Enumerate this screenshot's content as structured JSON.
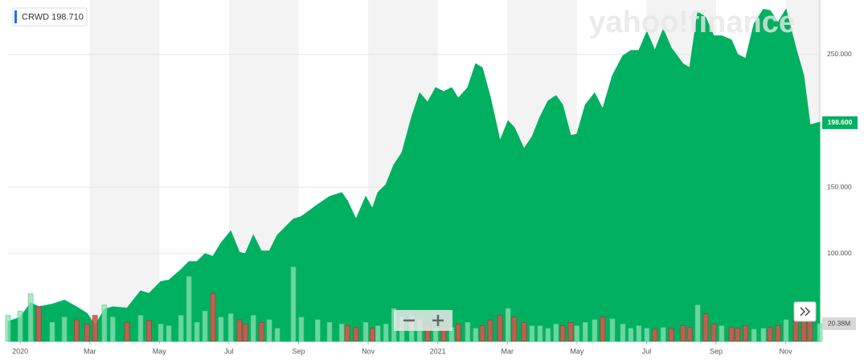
{
  "chart_data": {
    "type": "area",
    "legend_text": "CRWD 198.710",
    "watermark": "yahoo!finance",
    "last_price": {
      "value": 198.6,
      "label": "198.600"
    },
    "volume_label": "20.38M",
    "x": [
      -0.35,
      0,
      0.3,
      0.53,
      0.92,
      1.27,
      1.62,
      1.92,
      2.15,
      2.42,
      2.66,
      3.07,
      3.46,
      3.7,
      4.04,
      4.27,
      4.62,
      4.85,
      5.08,
      5.31,
      5.54,
      5.77,
      6.05,
      6.3,
      6.47,
      6.7,
      6.93,
      7.16,
      7.39,
      7.85,
      8.08,
      8.55,
      8.89,
      9.24,
      9.4,
      9.65,
      9.93,
      10.12,
      10.28,
      10.51,
      10.74,
      10.97,
      11.25,
      11.48,
      11.71,
      11.94,
      12.17,
      12.4,
      12.59,
      12.86,
      13.09,
      13.28,
      13.51,
      13.79,
      14.02,
      14.2,
      14.48,
      14.71,
      14.94,
      15.17,
      15.4,
      15.59,
      15.82,
      16.0,
      16.24,
      16.51,
      16.74,
      17.02,
      17.32,
      17.55,
      17.78,
      18.01,
      18.24,
      18.48,
      18.71,
      19.05,
      19.24,
      19.47,
      19.7,
      19.93,
      20.16,
      20.44,
      20.62,
      20.85,
      21.09,
      21.36,
      21.55,
      21.78,
      22.01,
      22.29,
      22.52,
      22.7,
      22.98
    ],
    "series": [
      {
        "name": "CRWD",
        "color": "#00b061",
        "values": [
          49,
          52,
          63,
          60,
          62,
          65,
          60,
          55,
          46,
          58,
          60,
          59,
          72,
          70,
          79,
          80,
          88,
          94,
          94,
          100,
          98,
          108,
          117,
          101,
          100,
          114,
          102,
          102,
          114,
          126,
          128,
          137,
          143,
          146,
          140,
          126,
          143,
          134,
          146,
          152,
          167,
          176,
          203,
          221,
          214,
          225,
          222,
          225,
          217,
          225,
          243,
          240,
          218,
          185,
          200,
          195,
          179,
          188,
          203,
          215,
          219,
          212,
          189,
          190,
          212,
          221,
          209,
          234,
          249,
          253,
          253,
          267,
          253,
          269,
          255,
          243,
          240,
          282,
          278,
          264,
          264,
          261,
          250,
          247,
          273,
          284,
          283,
          274,
          284,
          255,
          234,
          197,
          199
        ]
      },
      {
        "name": "Volume",
        "axis": "y2",
        "color": "#8fe3b4",
        "down_color": "#cf5a4e",
        "values": [
          30,
          35,
          55,
          40,
          22,
          28,
          25,
          20,
          30,
          42,
          28,
          22,
          30,
          24,
          20,
          18,
          30,
          75,
          22,
          35,
          55,
          28,
          32,
          25,
          20,
          30,
          22,
          25,
          15,
          86,
          28,
          25,
          22,
          20,
          18,
          16,
          22,
          15,
          18,
          20,
          38,
          28,
          30,
          25,
          20,
          15,
          18,
          16,
          20,
          22,
          15,
          18,
          25,
          30,
          38,
          28,
          22,
          18,
          18,
          15,
          20,
          18,
          22,
          18,
          22,
          25,
          28,
          26,
          20,
          15,
          18,
          15,
          14,
          16,
          15,
          18,
          16,
          42,
          32,
          20,
          18,
          16,
          15,
          18,
          14,
          15,
          16,
          18,
          25,
          30,
          38,
          28,
          20.38
        ]
      }
    ],
    "xlim": [
      -0.35,
      22.98
    ],
    "xticks": [
      {
        "value": 0,
        "label": "2020"
      },
      {
        "value": 2,
        "label": "Mar"
      },
      {
        "value": 4,
        "label": "May"
      },
      {
        "value": 6,
        "label": "Jul"
      },
      {
        "value": 8,
        "label": "Sep"
      },
      {
        "value": 10,
        "label": "Nov"
      },
      {
        "value": 12,
        "label": "2021"
      },
      {
        "value": 14,
        "label": "Mar"
      },
      {
        "value": 16,
        "label": "May"
      },
      {
        "value": 18,
        "label": "Jul"
      },
      {
        "value": 20,
        "label": "Sep"
      },
      {
        "value": 22,
        "label": "Nov"
      }
    ],
    "ylim": [
      34,
      291
    ],
    "yticks": [
      {
        "value": 100,
        "label": "100.000"
      },
      {
        "value": 150,
        "label": "150.000"
      },
      {
        "value": 250,
        "label": "250.000"
      }
    ],
    "y2lim": [
      0,
      395
    ],
    "grid": true
  }
}
